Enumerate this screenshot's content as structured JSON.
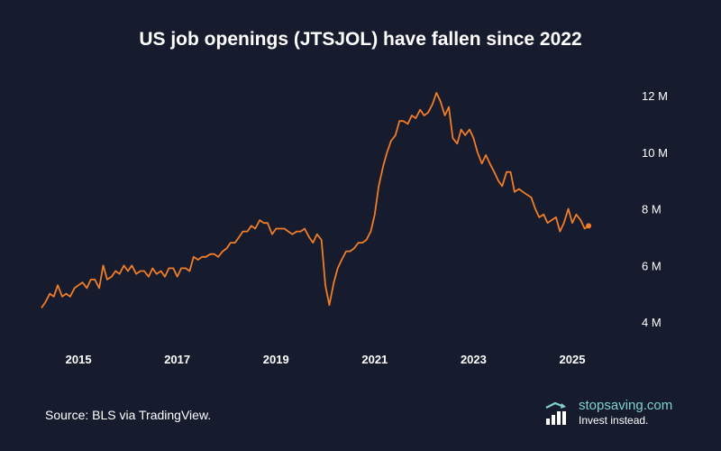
{
  "title": "US job openings (JTSJOL) have fallen since 2022",
  "source": "Source: BLS via TradingView.",
  "brand": {
    "name": "stopsaving.com",
    "tagline": "Invest instead.",
    "icon": "bar-chart-logo-icon"
  },
  "colors": {
    "background": "#161b2e",
    "line": "#f07d28",
    "text": "#ffffff",
    "brand": "#7fd3cc"
  },
  "chart_data": {
    "type": "line",
    "title": "US job openings (JTSJOL) have fallen since 2022",
    "xlabel": "",
    "ylabel": "",
    "y_axis_position": "right",
    "grid": false,
    "legend": "none",
    "xlim": [
      2014.25,
      2025.42
    ],
    "ylim": [
      4,
      12
    ],
    "x_ticks": [
      2015,
      2017,
      2019,
      2021,
      2023,
      2025
    ],
    "x_tick_labels": [
      "2015",
      "2017",
      "2019",
      "2021",
      "2023",
      "2025"
    ],
    "y_ticks": [
      4,
      6,
      8,
      10,
      12
    ],
    "y_tick_labels": [
      "4 M",
      "6 M",
      "8 M",
      "10 M",
      "12 M"
    ],
    "series": [
      {
        "end_marker": true,
        "x": [
          2014.25,
          2014.33,
          2014.42,
          2014.5,
          2014.58,
          2014.67,
          2014.75,
          2014.83,
          2014.92,
          2015.0,
          2015.08,
          2015.17,
          2015.25,
          2015.33,
          2015.42,
          2015.5,
          2015.58,
          2015.67,
          2015.75,
          2015.83,
          2015.92,
          2016.0,
          2016.08,
          2016.17,
          2016.25,
          2016.33,
          2016.42,
          2016.5,
          2016.58,
          2016.67,
          2016.75,
          2016.83,
          2016.92,
          2017.0,
          2017.08,
          2017.17,
          2017.25,
          2017.33,
          2017.42,
          2017.5,
          2017.58,
          2017.67,
          2017.75,
          2017.83,
          2017.92,
          2018.0,
          2018.08,
          2018.17,
          2018.25,
          2018.33,
          2018.42,
          2018.5,
          2018.58,
          2018.67,
          2018.75,
          2018.83,
          2018.92,
          2019.0,
          2019.08,
          2019.17,
          2019.25,
          2019.33,
          2019.42,
          2019.5,
          2019.58,
          2019.67,
          2019.75,
          2019.83,
          2019.92,
          2020.0,
          2020.08,
          2020.17,
          2020.25,
          2020.33,
          2020.42,
          2020.5,
          2020.58,
          2020.67,
          2020.75,
          2020.83,
          2020.92,
          2021.0,
          2021.08,
          2021.17,
          2021.25,
          2021.33,
          2021.42,
          2021.5,
          2021.58,
          2021.67,
          2021.75,
          2021.83,
          2021.92,
          2022.0,
          2022.08,
          2022.17,
          2022.25,
          2022.33,
          2022.42,
          2022.5,
          2022.58,
          2022.67,
          2022.75,
          2022.83,
          2022.92,
          2023.0,
          2023.08,
          2023.17,
          2023.25,
          2023.33,
          2023.42,
          2023.5,
          2023.58,
          2023.67,
          2023.75,
          2023.83,
          2023.92,
          2024.0,
          2024.08,
          2024.17,
          2024.25,
          2024.33,
          2024.42,
          2024.5,
          2024.58,
          2024.67,
          2024.75,
          2024.83,
          2024.92,
          2025.0,
          2025.08,
          2025.17,
          2025.25,
          2025.33
        ],
        "values": [
          4.5,
          4.7,
          5.0,
          4.9,
          5.3,
          4.9,
          5.0,
          4.9,
          5.2,
          5.3,
          5.4,
          5.2,
          5.5,
          5.5,
          5.2,
          6.0,
          5.5,
          5.6,
          5.8,
          5.7,
          6.0,
          5.8,
          6.0,
          5.7,
          5.8,
          5.8,
          5.6,
          5.9,
          5.7,
          5.8,
          5.6,
          5.9,
          5.9,
          5.6,
          5.9,
          5.9,
          5.8,
          6.3,
          6.2,
          6.3,
          6.3,
          6.4,
          6.4,
          6.3,
          6.5,
          6.6,
          6.8,
          6.8,
          7.0,
          7.2,
          7.2,
          7.4,
          7.3,
          7.6,
          7.5,
          7.5,
          7.1,
          7.3,
          7.3,
          7.3,
          7.2,
          7.1,
          7.2,
          7.2,
          7.3,
          7.0,
          6.8,
          7.1,
          6.9,
          5.3,
          4.6,
          5.4,
          5.9,
          6.2,
          6.5,
          6.5,
          6.6,
          6.8,
          6.8,
          6.9,
          7.2,
          7.8,
          8.8,
          9.5,
          10.0,
          10.4,
          10.6,
          11.1,
          11.1,
          11.0,
          11.3,
          11.2,
          11.5,
          11.3,
          11.4,
          11.7,
          12.1,
          11.8,
          11.3,
          11.6,
          10.5,
          10.3,
          10.8,
          10.6,
          10.8,
          10.5,
          10.0,
          9.6,
          9.9,
          9.6,
          9.3,
          9.0,
          8.8,
          9.3,
          9.3,
          8.6,
          8.7,
          8.6,
          8.5,
          8.4,
          8.0,
          7.7,
          7.8,
          7.5,
          7.6,
          7.7,
          7.2,
          7.5,
          8.0,
          7.5,
          7.8,
          7.6,
          7.3,
          7.4
        ]
      }
    ]
  }
}
